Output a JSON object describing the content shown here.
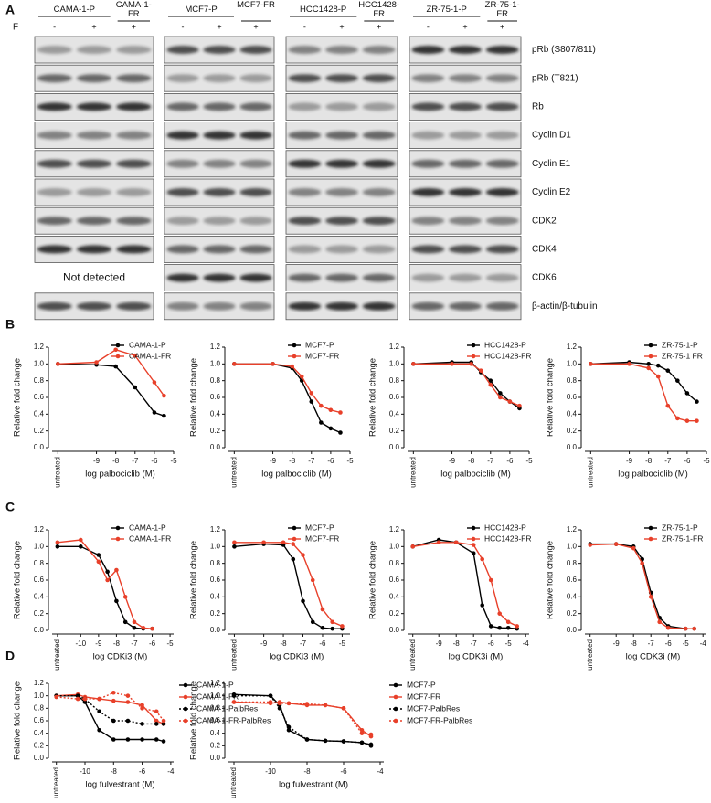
{
  "blots": {
    "label": "A",
    "treatment": "F",
    "groups": [
      {
        "parental": "CAMA-1-P",
        "resistant": "CAMA-1-FR",
        "signs": [
          "-",
          "+",
          "+"
        ]
      },
      {
        "parental": "MCF7-P",
        "resistant": "MCF7-FR",
        "signs": [
          "-",
          "+",
          "+"
        ]
      },
      {
        "parental": "HCC1428-P",
        "resistant": "HCC1428-FR",
        "signs": [
          "-",
          "+",
          "+"
        ]
      },
      {
        "parental": "ZR-75-1-P",
        "resistant": "ZR-75-1-FR",
        "signs": [
          "-",
          "+",
          "+"
        ]
      }
    ],
    "rows": [
      "pRb (S807/811)",
      "pRb (T821)",
      "Rb",
      "Cyclin D1",
      "Cyclin E1",
      "Cyclin E2",
      "CDK2",
      "CDK4",
      "CDK6",
      "β-actin/β-tubulin"
    ],
    "not_detected": "Not detected"
  },
  "panel_labels": [
    "B",
    "C",
    "D"
  ],
  "chart_data": [
    {
      "type": "line",
      "ylabel": "Relative fold change",
      "xlabel": "log palbociclib (M)",
      "legend": "upper right",
      "xlim": [
        -11.3,
        -5
      ],
      "xticks": [
        {
          "value": -11,
          "label": "untreated"
        },
        -9,
        -8,
        -7,
        -6,
        -5
      ],
      "ylim": [
        0,
        1.2
      ],
      "yticks": [
        {
          "value": 0,
          "label": "0.0"
        },
        0.2,
        0.4,
        0.6,
        0.8,
        {
          "value": 1,
          "label": "1.0"
        },
        1.2
      ],
      "x": [
        -11,
        -9,
        -8,
        -7,
        -6,
        -5.5
      ],
      "series": [
        {
          "name": "CAMA-1-P",
          "color": "#000000",
          "values": [
            1.0,
            0.99,
            0.97,
            0.72,
            0.42,
            0.38
          ]
        },
        {
          "name": "CAMA-1-FR",
          "color": "#e8402a",
          "values": [
            1.0,
            1.02,
            1.17,
            1.1,
            0.78,
            0.62
          ]
        }
      ]
    },
    {
      "type": "line",
      "ylabel": "Relative fold change",
      "xlabel": "log palbociclib (M)",
      "legend": "upper right",
      "xlim": [
        -11.3,
        -5
      ],
      "xticks": [
        {
          "value": -11,
          "label": "untreated"
        },
        -9,
        -8,
        -7,
        -6,
        -5
      ],
      "ylim": [
        0,
        1.2
      ],
      "yticks": [
        {
          "value": 0,
          "label": "0.0"
        },
        0.2,
        0.4,
        0.6,
        0.8,
        {
          "value": 1,
          "label": "1.0"
        },
        1.2
      ],
      "x": [
        -11,
        -9,
        -8,
        -7.5,
        -7,
        -6.5,
        -6,
        -5.5
      ],
      "series": [
        {
          "name": "MCF7-P",
          "color": "#000000",
          "values": [
            1.0,
            1.0,
            0.95,
            0.8,
            0.55,
            0.3,
            0.23,
            0.18
          ]
        },
        {
          "name": "MCF7-FR",
          "color": "#e8402a",
          "values": [
            1.0,
            1.0,
            0.97,
            0.85,
            0.65,
            0.5,
            0.45,
            0.42
          ]
        }
      ]
    },
    {
      "type": "line",
      "ylabel": "Relative fold change",
      "xlabel": "log palbociclib (M)",
      "legend": "upper right",
      "xlim": [
        -11.3,
        -5
      ],
      "xticks": [
        {
          "value": -11,
          "label": "untreated"
        },
        -9,
        -8,
        -7,
        -6,
        -5
      ],
      "ylim": [
        0,
        1.2
      ],
      "yticks": [
        {
          "value": 0,
          "label": "0.0"
        },
        0.2,
        0.4,
        0.6,
        0.8,
        {
          "value": 1,
          "label": "1.0"
        },
        1.2
      ],
      "x": [
        -11,
        -9,
        -8,
        -7.5,
        -7,
        -6.5,
        -6,
        -5.5
      ],
      "series": [
        {
          "name": "HCC1428-P",
          "color": "#000000",
          "values": [
            1.0,
            1.02,
            1.02,
            0.9,
            0.8,
            0.65,
            0.55,
            0.47
          ]
        },
        {
          "name": "HCC1428-FR",
          "color": "#e8402a",
          "values": [
            1.0,
            1.0,
            1.0,
            0.92,
            0.75,
            0.6,
            0.55,
            0.5
          ]
        }
      ]
    },
    {
      "type": "line",
      "ylabel": "Relative fold change",
      "xlabel": "log palbociclib (M)",
      "legend": "upper right",
      "xlim": [
        -11.3,
        -5
      ],
      "xticks": [
        {
          "value": -11,
          "label": "untreated"
        },
        -9,
        -8,
        -7,
        -6,
        -5
      ],
      "ylim": [
        0,
        1.2
      ],
      "yticks": [
        {
          "value": 0,
          "label": "0.0"
        },
        0.2,
        0.4,
        0.6,
        0.8,
        {
          "value": 1,
          "label": "1.0"
        },
        1.2
      ],
      "x": [
        -11,
        -9,
        -8,
        -7.5,
        -7,
        -6.5,
        -6,
        -5.5
      ],
      "series": [
        {
          "name": "ZR-75-1-P",
          "color": "#000000",
          "values": [
            1.0,
            1.02,
            1.0,
            0.98,
            0.92,
            0.8,
            0.65,
            0.55
          ]
        },
        {
          "name": "ZR-75-1 FR",
          "color": "#e8402a",
          "values": [
            1.0,
            1.0,
            0.95,
            0.85,
            0.5,
            0.35,
            0.32,
            0.32
          ]
        }
      ]
    },
    {
      "type": "line",
      "ylabel": "Relative fold change",
      "xlabel": "log CDKi3 (M)",
      "legend": "upper right",
      "xlim": [
        -11.6,
        -4.8
      ],
      "xticks": [
        {
          "value": -11.3,
          "label": "untreated"
        },
        -10,
        -9,
        -8,
        -7,
        -6,
        -5
      ],
      "ylim": [
        0,
        1.2
      ],
      "yticks": [
        {
          "value": 0,
          "label": "0.0"
        },
        0.2,
        0.4,
        0.6,
        0.8,
        {
          "value": 1,
          "label": "1.0"
        },
        1.2
      ],
      "x": [
        -11.3,
        -10,
        -9,
        -8.5,
        -8,
        -7.5,
        -7,
        -6.5,
        -6
      ],
      "series": [
        {
          "name": "CAMA-1-P",
          "color": "#000000",
          "values": [
            1.0,
            1.0,
            0.9,
            0.7,
            0.35,
            0.1,
            0.03,
            0.02,
            0.02
          ]
        },
        {
          "name": "CAMA-1-FR",
          "color": "#e8402a",
          "values": [
            1.05,
            1.08,
            0.82,
            0.6,
            0.72,
            0.4,
            0.1,
            0.03,
            0.02
          ]
        }
      ]
    },
    {
      "type": "line",
      "ylabel": "Relative fold change",
      "xlabel": "log CDKi3 (M)",
      "legend": "upper right",
      "xlim": [
        -10.8,
        -4.6
      ],
      "xticks": [
        {
          "value": -10.5,
          "label": "untreated"
        },
        -9,
        -8,
        -7,
        -6,
        -5
      ],
      "ylim": [
        0,
        1.2
      ],
      "yticks": [
        {
          "value": 0,
          "label": "0.0"
        },
        0.2,
        0.4,
        0.6,
        0.8,
        {
          "value": 1,
          "label": "1.0"
        },
        1.2
      ],
      "x": [
        -10.5,
        -9,
        -8,
        -7.5,
        -7,
        -6.5,
        -6,
        -5.5,
        -5
      ],
      "series": [
        {
          "name": "MCF7-P",
          "color": "#000000",
          "values": [
            1.0,
            1.03,
            1.02,
            0.85,
            0.35,
            0.1,
            0.03,
            0.02,
            0.02
          ]
        },
        {
          "name": "MCF7-FR",
          "color": "#e8402a",
          "values": [
            1.05,
            1.05,
            1.05,
            1.03,
            0.9,
            0.6,
            0.25,
            0.1,
            0.05
          ]
        }
      ]
    },
    {
      "type": "line",
      "ylabel": "Relative fold change",
      "xlabel": "log CDK3i (M)",
      "legend": "upper right",
      "xlim": [
        -10.8,
        -3.8
      ],
      "xticks": [
        {
          "value": -10.5,
          "label": "untreated"
        },
        -9,
        -8,
        -7,
        -6,
        -5,
        -4
      ],
      "ylim": [
        0,
        1.2
      ],
      "yticks": [
        {
          "value": 0,
          "label": "0.0"
        },
        0.2,
        0.4,
        0.6,
        0.8,
        {
          "value": 1,
          "label": "1.0"
        },
        1.2
      ],
      "x": [
        -10.5,
        -9,
        -8,
        -7,
        -6.5,
        -6,
        -5.5,
        -5,
        -4.5
      ],
      "series": [
        {
          "name": "HCC1428-P",
          "color": "#000000",
          "values": [
            1.0,
            1.08,
            1.05,
            0.92,
            0.3,
            0.05,
            0.03,
            0.03,
            0.02
          ]
        },
        {
          "name": "HCC1428-FR",
          "color": "#e8402a",
          "values": [
            1.0,
            1.05,
            1.05,
            1.02,
            0.85,
            0.6,
            0.2,
            0.1,
            0.05
          ]
        }
      ]
    },
    {
      "type": "line",
      "ylabel": "Relative fold change",
      "xlabel": "log CDK3i (M)",
      "legend": "upper right",
      "xlim": [
        -10.8,
        -3.8
      ],
      "xticks": [
        {
          "value": -10.5,
          "label": "untreated"
        },
        -9,
        -8,
        -7,
        -6,
        -5,
        -4
      ],
      "ylim": [
        0,
        1.2
      ],
      "yticks": [
        {
          "value": 0,
          "label": "0.0"
        },
        0.2,
        0.4,
        0.6,
        0.8,
        {
          "value": 1,
          "label": "1.0"
        },
        1.2
      ],
      "x": [
        -10.5,
        -9,
        -8,
        -7.5,
        -7,
        -6.5,
        -6,
        -5,
        -4.5
      ],
      "series": [
        {
          "name": "ZR-75-1-P",
          "color": "#000000",
          "values": [
            1.03,
            1.03,
            1.0,
            0.85,
            0.45,
            0.15,
            0.05,
            0.02,
            0.02
          ]
        },
        {
          "name": "ZR-75-1-FR",
          "color": "#e8402a",
          "values": [
            1.02,
            1.03,
            0.98,
            0.8,
            0.4,
            0.1,
            0.03,
            0.02,
            0.02
          ]
        }
      ]
    },
    {
      "type": "line",
      "ylabel": "Relative fold change",
      "xlabel": "log fulvestrant (M)",
      "legend": "outside right",
      "xlim": [
        -12.3,
        -3.8
      ],
      "xticks": [
        {
          "value": -12,
          "label": "untreated"
        },
        -10,
        -8,
        -6,
        -4
      ],
      "ylim": [
        0,
        1.2
      ],
      "yticks": [
        {
          "value": 0,
          "label": "0.0"
        },
        0.2,
        0.4,
        0.6,
        0.8,
        {
          "value": 1,
          "label": "1.0"
        },
        1.2
      ],
      "x": [
        -12,
        -10.5,
        -10,
        -9,
        -8,
        -7,
        -6,
        -5,
        -4.5
      ],
      "series": [
        {
          "name": "CAMA-1-P",
          "color": "#000000",
          "line_style": "solid",
          "values": [
            1.0,
            1.0,
            0.9,
            0.45,
            0.3,
            0.3,
            0.3,
            0.3,
            0.27
          ]
        },
        {
          "name": "CAMA-1-FR",
          "color": "#e8402a",
          "line_style": "solid",
          "values": [
            1.0,
            1.02,
            0.98,
            0.95,
            0.92,
            0.9,
            0.85,
            0.6,
            0.55
          ]
        },
        {
          "name": "CAMA-1-PalbRes",
          "color": "#000000",
          "line_style": "dotted",
          "values": [
            1.0,
            1.0,
            0.95,
            0.75,
            0.6,
            0.6,
            0.55,
            0.55,
            0.55
          ]
        },
        {
          "name": "CAMA-1-FR-PalbRes",
          "color": "#e8402a",
          "line_style": "dotted",
          "values": [
            0.98,
            0.95,
            0.95,
            0.95,
            1.05,
            1.0,
            0.8,
            0.75,
            0.6
          ]
        }
      ]
    },
    {
      "type": "line",
      "ylabel": "Relative fold change",
      "xlabel": "log fulvestrant (M)",
      "legend": "outside right",
      "xlim": [
        -12.3,
        -3.8
      ],
      "xticks": [
        {
          "value": -12,
          "label": "untreated"
        },
        -10,
        -8,
        -6,
        -4
      ],
      "ylim": [
        0,
        1.2
      ],
      "yticks": [
        {
          "value": 0,
          "label": "0.0"
        },
        0.2,
        0.4,
        0.6,
        0.8,
        {
          "value": 1,
          "label": "1.0"
        },
        1.2
      ],
      "x": [
        -12,
        -10,
        -9.5,
        -9,
        -8,
        -7,
        -6,
        -5,
        -4.5
      ],
      "series": [
        {
          "name": "MCF7-P",
          "color": "#000000",
          "line_style": "solid",
          "values": [
            1.02,
            1.0,
            0.85,
            0.45,
            0.3,
            0.28,
            0.27,
            0.25,
            0.22
          ]
        },
        {
          "name": "MCF7-FR",
          "color": "#e8402a",
          "line_style": "solid",
          "values": [
            0.9,
            0.88,
            0.9,
            0.88,
            0.85,
            0.85,
            0.8,
            0.45,
            0.35
          ]
        },
        {
          "name": "MCF7-PalbRes",
          "color": "#000000",
          "line_style": "dotted",
          "values": [
            1.0,
            1.0,
            0.8,
            0.5,
            0.3,
            0.28,
            0.27,
            0.25,
            0.2
          ]
        },
        {
          "name": "MCF7-FR-PalbRes",
          "color": "#e8402a",
          "line_style": "dotted",
          "values": [
            0.9,
            0.9,
            0.88,
            0.88,
            0.87,
            0.85,
            0.8,
            0.4,
            0.38
          ]
        }
      ]
    }
  ]
}
